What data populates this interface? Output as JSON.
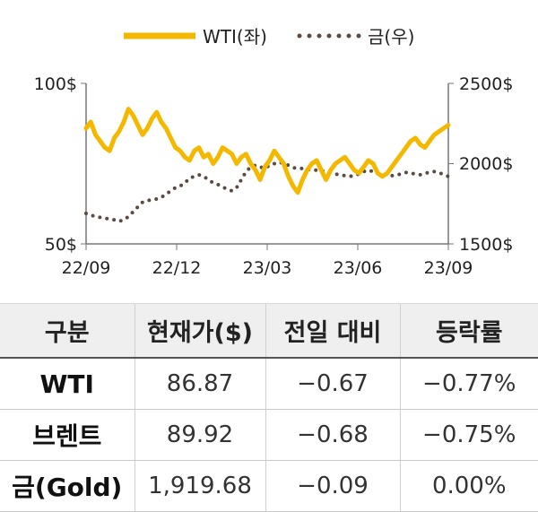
{
  "chart_data": {
    "type": "line",
    "legend": {
      "position": "top-center",
      "items": [
        "WTI(좌)",
        "금(우)"
      ]
    },
    "x_ticks": [
      "22/09",
      "22/12",
      "23/03",
      "23/06",
      "23/09"
    ],
    "y_left": {
      "ticks": [
        "100$",
        "50$"
      ],
      "range": [
        50,
        100
      ]
    },
    "y_right": {
      "ticks": [
        "2500$",
        "2000$",
        "1500$"
      ],
      "range": [
        1500,
        2500
      ]
    },
    "series": [
      {
        "name": "WTI(좌)",
        "axis": "left",
        "color": "#f5b800",
        "style": "solid",
        "values": [
          86,
          88,
          84,
          82,
          80,
          79,
          83,
          85,
          88,
          92,
          90,
          87,
          84,
          86,
          89,
          91,
          88,
          86,
          83,
          80,
          79,
          77,
          76,
          79,
          80,
          77,
          78,
          75,
          77,
          80,
          79,
          78,
          75,
          77,
          78,
          75,
          73,
          70,
          74,
          76,
          79,
          77,
          75,
          71,
          68,
          66,
          70,
          73,
          75,
          76,
          73,
          70,
          73,
          75,
          76,
          77,
          75,
          73,
          72,
          74,
          76,
          75,
          72,
          71,
          72,
          74,
          76,
          78,
          80,
          82,
          83,
          81,
          80,
          82,
          84,
          85,
          86,
          87
        ]
      },
      {
        "name": "금(우)",
        "axis": "right",
        "color": "#5a4a42",
        "style": "dotted",
        "values": [
          1690,
          1680,
          1670,
          1665,
          1660,
          1655,
          1650,
          1640,
          1650,
          1670,
          1700,
          1730,
          1760,
          1770,
          1775,
          1780,
          1790,
          1810,
          1830,
          1850,
          1860,
          1880,
          1910,
          1920,
          1930,
          1920,
          1900,
          1880,
          1870,
          1855,
          1840,
          1830,
          1850,
          1900,
          1950,
          1980,
          1990,
          1980,
          1970,
          1990,
          2000,
          2010,
          2000,
          1990,
          1975,
          1970,
          1970,
          1965,
          1960,
          1960,
          1955,
          1950,
          1945,
          1935,
          1930,
          1925,
          1920,
          1925,
          1935,
          1950,
          1960,
          1950,
          1940,
          1935,
          1930,
          1925,
          1930,
          1935,
          1945,
          1940,
          1935,
          1930,
          1940,
          1945,
          1950,
          1945,
          1930,
          1920
        ]
      }
    ]
  },
  "table": {
    "headers": [
      "구분",
      "현재가($)",
      "전일 대비",
      "등락률"
    ],
    "rows": [
      {
        "label": "WTI",
        "price": "86.87",
        "change": "−0.67",
        "rate": "−0.77%"
      },
      {
        "label": "브렌트",
        "price": "89.92",
        "change": "−0.68",
        "rate": "−0.75%"
      },
      {
        "label": "금(Gold)",
        "price": "1,919.68",
        "change": "−0.09",
        "rate": "0.00%"
      }
    ]
  }
}
